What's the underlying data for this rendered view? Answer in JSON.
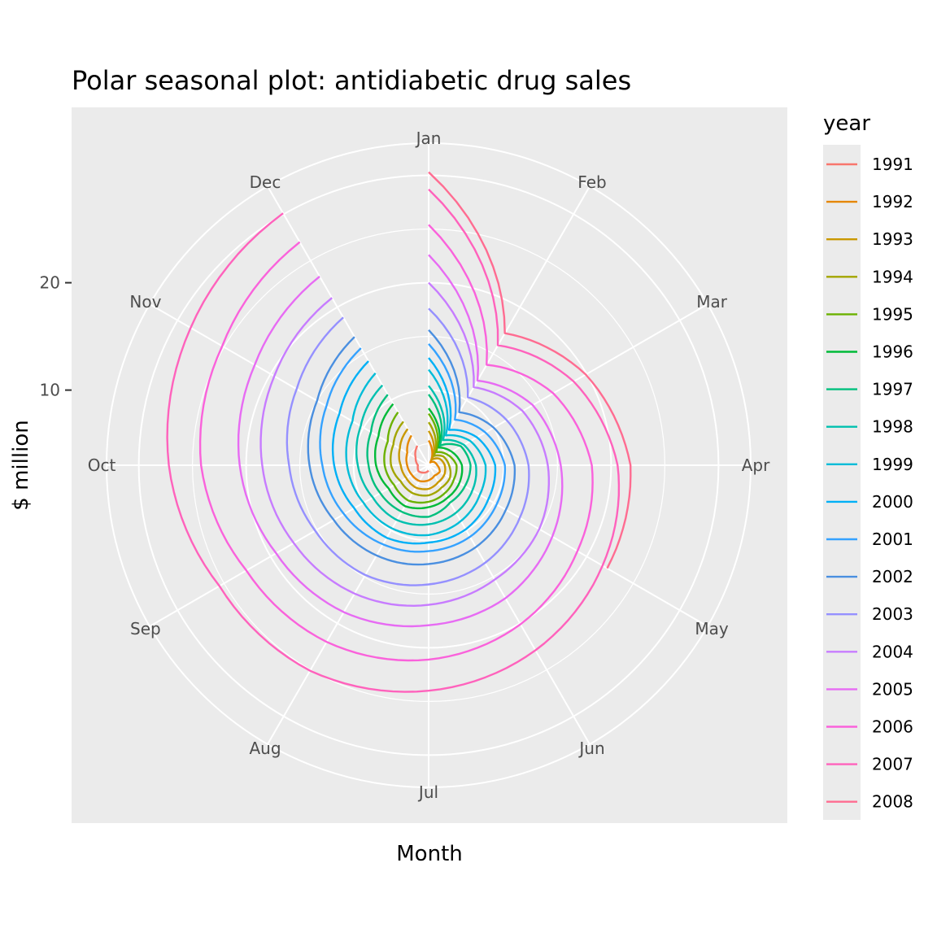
{
  "chart_data": {
    "type": "line",
    "coordinate_system": "polar",
    "title": "Polar seasonal plot: antidiabetic drug sales",
    "xlabel": "Month",
    "ylabel": "$ million",
    "months": [
      "Jan",
      "Feb",
      "Mar",
      "Apr",
      "May",
      "Jun",
      "Jul",
      "Aug",
      "Sep",
      "Oct",
      "Nov",
      "Dec"
    ],
    "radial_ticks": [
      10,
      20
    ],
    "radial_range": [
      3,
      33
    ],
    "grid": true,
    "legend": {
      "title": "year",
      "position": "right"
    },
    "series": [
      {
        "name": "1991",
        "color": "#F8766D",
        "values": [
          null,
          null,
          null,
          null,
          null,
          null,
          3.5,
          3.8,
          4.1,
          4.0,
          4.4,
          5.1
        ]
      },
      {
        "name": "1992",
        "color": "#E58700",
        "values": [
          5.3,
          3.3,
          3.6,
          3.8,
          4.2,
          4.1,
          4.4,
          4.7,
          4.8,
          5.0,
          5.3,
          6.2
        ]
      },
      {
        "name": "1993",
        "color": "#C99800",
        "values": [
          6.2,
          3.6,
          4.2,
          4.5,
          4.7,
          4.8,
          5.2,
          5.4,
          5.4,
          5.6,
          6.1,
          6.9
        ]
      },
      {
        "name": "1994",
        "color": "#A3A500",
        "values": [
          7.0,
          4.0,
          4.6,
          4.9,
          5.3,
          5.4,
          5.8,
          6.0,
          6.0,
          6.5,
          6.8,
          7.7
        ]
      },
      {
        "name": "1995",
        "color": "#6BB100",
        "values": [
          7.8,
          4.4,
          5.0,
          5.6,
          5.7,
          6.0,
          6.4,
          6.8,
          6.7,
          7.1,
          7.4,
          8.7
        ]
      },
      {
        "name": "1996",
        "color": "#00BA38",
        "values": [
          8.3,
          4.9,
          5.5,
          6.1,
          6.3,
          6.5,
          6.9,
          7.4,
          7.3,
          7.9,
          8.4,
          9.6
        ]
      },
      {
        "name": "1997",
        "color": "#00BF7D",
        "values": [
          9.6,
          5.1,
          6.5,
          6.9,
          6.9,
          7.0,
          7.8,
          8.0,
          8.2,
          8.6,
          9.2,
          10.6
        ]
      },
      {
        "name": "1998",
        "color": "#00C0AF",
        "values": [
          10.4,
          5.7,
          6.8,
          7.4,
          7.7,
          8.1,
          8.5,
          8.9,
          9.0,
          9.6,
          10.3,
          11.6
        ]
      },
      {
        "name": "1999",
        "color": "#00BCD8",
        "values": [
          11.9,
          6.2,
          7.5,
          8.3,
          8.5,
          9.0,
          9.5,
          9.8,
          10.0,
          10.6,
          11.2,
          12.9
        ]
      },
      {
        "name": "2000",
        "color": "#00B0F6",
        "values": [
          13.0,
          6.8,
          8.2,
          9.2,
          9.4,
          9.9,
          10.2,
          10.8,
          11.0,
          11.8,
          12.6,
          14.2
        ]
      },
      {
        "name": "2001",
        "color": "#35A2FF",
        "values": [
          14.3,
          7.9,
          9.1,
          10.1,
          10.3,
          10.7,
          11.0,
          11.5,
          12.1,
          12.9,
          14.0,
          15.6
        ]
      },
      {
        "name": "2002",
        "color": "#4A8FE0",
        "values": [
          15.6,
          8.7,
          10.0,
          11.0,
          11.3,
          11.8,
          12.2,
          12.7,
          13.2,
          14.1,
          15.0,
          16.8
        ]
      },
      {
        "name": "2003",
        "color": "#9590FF",
        "values": [
          17.6,
          10.3,
          11.4,
          12.3,
          12.8,
          13.5,
          14.1,
          14.8,
          15.2,
          16.0,
          17.2,
          18.9
        ]
      },
      {
        "name": "2004",
        "color": "#C77CFF",
        "values": [
          20.0,
          11.4,
          13.1,
          14.1,
          14.9,
          15.3,
          16.0,
          16.8,
          17.5,
          18.5,
          19.6,
          21.0
        ]
      },
      {
        "name": "2005",
        "color": "#E76BF3",
        "values": [
          22.6,
          12.1,
          14.2,
          15.3,
          16.3,
          17.3,
          17.9,
          18.8,
          19.4,
          20.6,
          21.7,
          23.3
        ]
      },
      {
        "name": "2006",
        "color": "#FA62DB",
        "values": [
          25.4,
          13.8,
          16.4,
          18.2,
          19.0,
          20.1,
          21.1,
          22.0,
          22.6,
          24.2,
          25.2,
          27.0
        ]
      },
      {
        "name": "2007",
        "color": "#FF62BC",
        "values": [
          28.7,
          15.9,
          18.6,
          20.6,
          21.7,
          22.9,
          24.0,
          25.1,
          25.5,
          27.2,
          28.6,
          30.1
        ]
      },
      {
        "name": "2008",
        "color": "#FF6C91",
        "values": [
          30.3,
          17.2,
          19.9,
          21.8,
          22.2
        ]
      }
    ]
  }
}
